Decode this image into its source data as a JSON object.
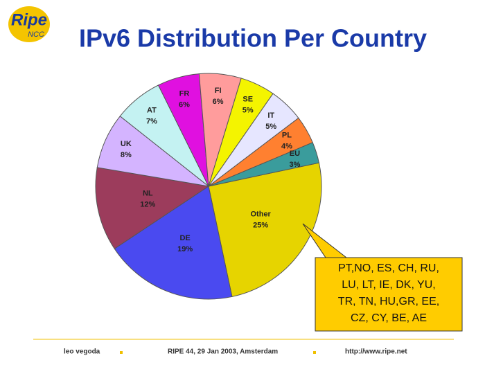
{
  "logo": {
    "main": "Ripe",
    "sub": "NCC"
  },
  "chart_data": {
    "type": "pie",
    "title": "IPv6 Distribution Per Country",
    "categories": [
      "Other",
      "DE",
      "NL",
      "UK",
      "AT",
      "FR",
      "FI",
      "SE",
      "IT",
      "PL",
      "EU"
    ],
    "values": [
      25,
      19,
      12,
      8,
      7,
      6,
      6,
      5,
      5,
      4,
      3
    ],
    "value_labels": [
      "25%",
      "19%",
      "12%",
      "8%",
      "7%",
      "6%",
      "6%",
      "5%",
      "5%",
      "4%",
      "3%"
    ],
    "colors": [
      "#e6d400",
      "#4a4af0",
      "#9c3c5c",
      "#d4b4ff",
      "#c4f2f2",
      "#e010e0",
      "#ff9c9c",
      "#f4f400",
      "#e6e6ff",
      "#ff8030",
      "#3a9c9c"
    ],
    "callout": [
      "PT,NO, ES, CH, RU,",
      "LU, LT,  IE, DK, YU,",
      "TR, TN, HU,GR, EE,",
      "CZ, CY, BE, AE"
    ]
  },
  "footer": {
    "author": "leo vegoda",
    "event": "RIPE 44, 29 Jan 2003, Amsterdam",
    "url": "http://www.ripe.net"
  }
}
